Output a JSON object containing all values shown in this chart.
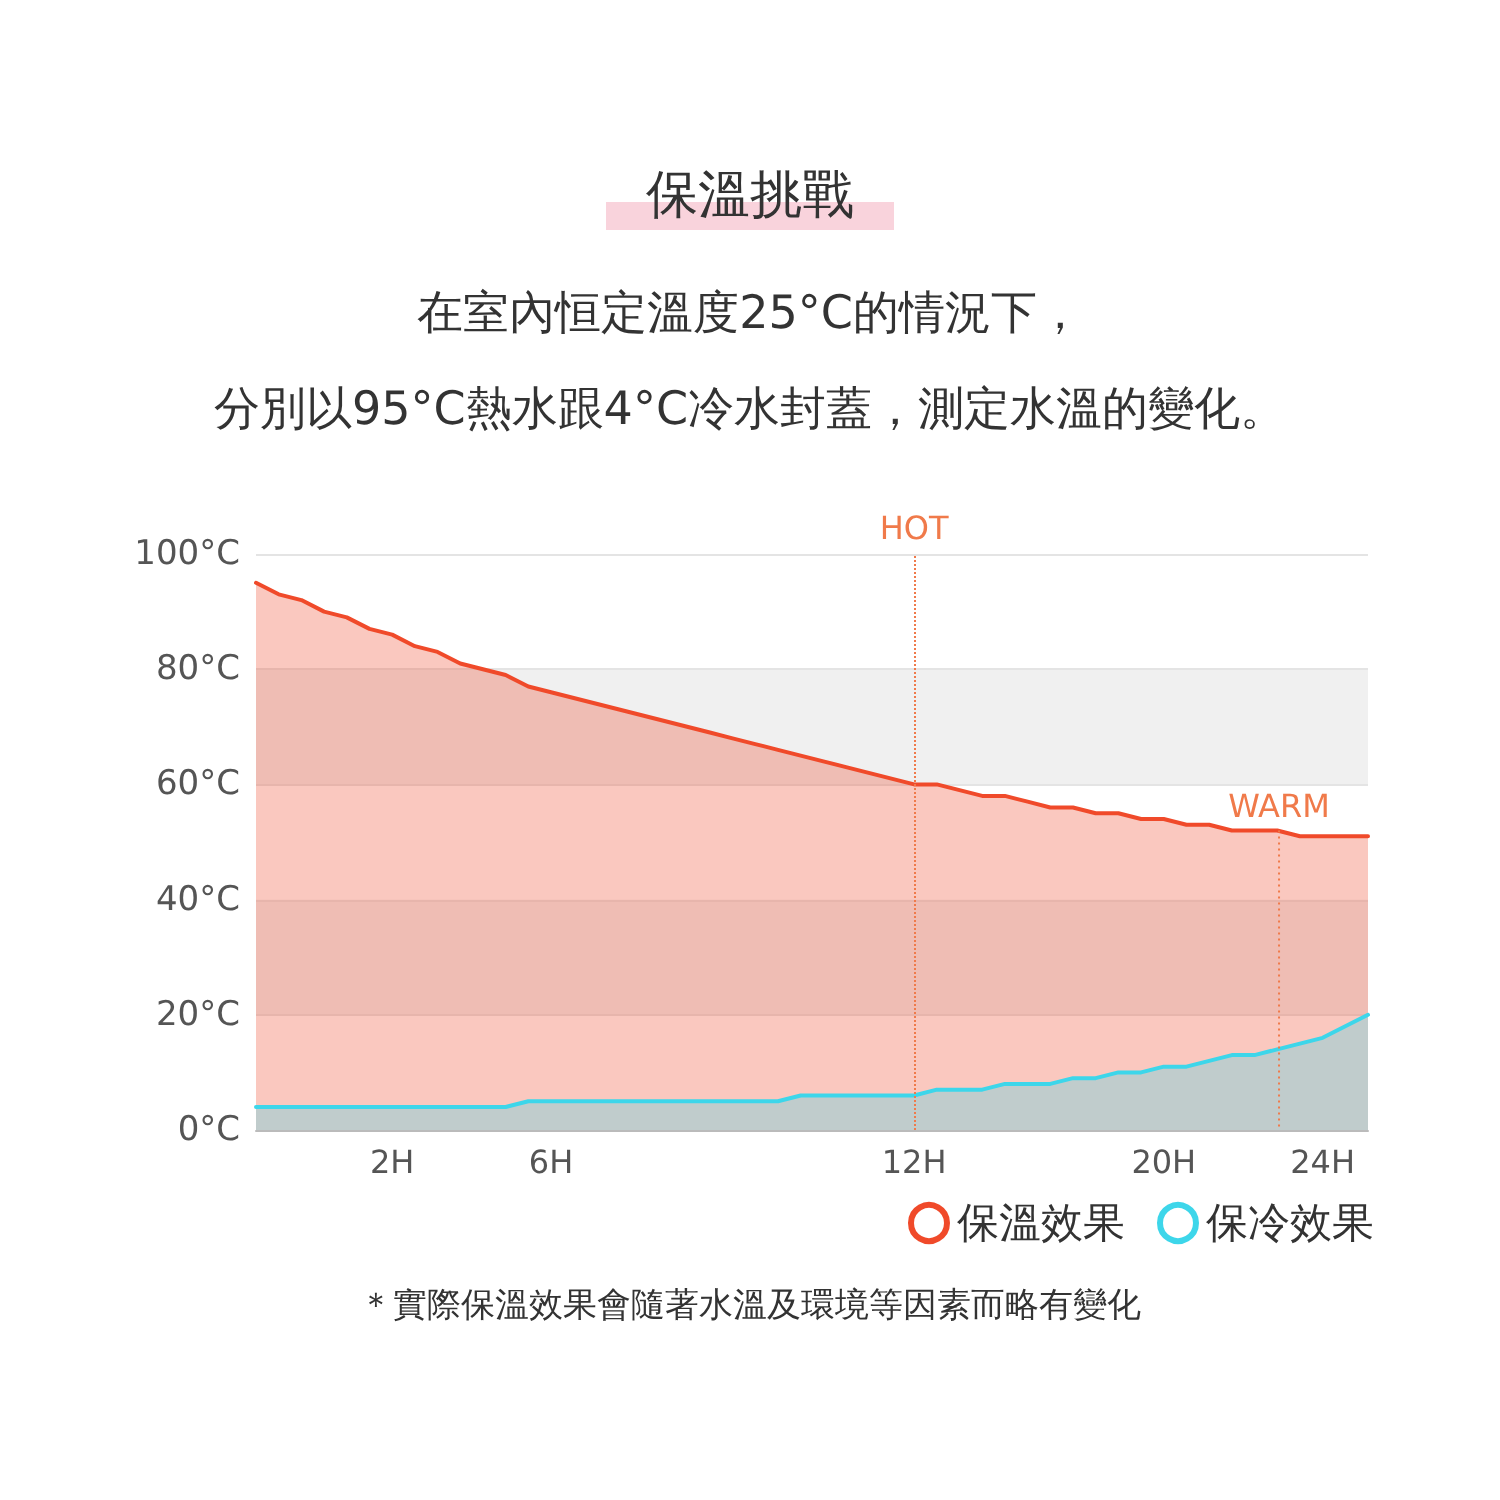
{
  "chart_data": {
    "type": "area",
    "title": "保溫挑戰",
    "subtitle": "在室內恒定溫度25°C的情況下，",
    "categories": [
      null,
      null,
      null,
      null,
      null,
      null,
      "2H",
      null,
      null,
      null,
      null,
      null,
      null,
      "6H",
      null,
      null,
      null,
      null,
      null,
      null,
      null,
      null,
      null,
      null,
      null,
      null,
      null,
      null,
      null,
      "12H",
      null,
      null,
      null,
      null,
      null,
      null,
      null,
      null,
      null,
      null,
      "20H",
      null,
      null,
      null,
      null,
      null,
      null,
      "24H",
      null,
      null
    ],
    "series": [
      {
        "name": "保溫效果",
        "color": "#f04a2a",
        "values": [
          95,
          93,
          92,
          90,
          89,
          87,
          86,
          84,
          83,
          81,
          80,
          79,
          77,
          76,
          75,
          74,
          73,
          72,
          71,
          70,
          69,
          68,
          67,
          66,
          65,
          64,
          63,
          62,
          61,
          60,
          60,
          59,
          58,
          58,
          57,
          56,
          56,
          55,
          55,
          54,
          54,
          53,
          53,
          52,
          52,
          52,
          51,
          51,
          51,
          51
        ]
      },
      {
        "name": "保冷效果",
        "color": "#3dd6ea",
        "values": [
          4,
          4,
          4,
          4,
          4,
          4,
          4,
          4,
          4,
          4,
          4,
          4,
          5,
          5,
          5,
          5,
          5,
          5,
          5,
          5,
          5,
          5,
          5,
          5,
          6,
          6,
          6,
          6,
          6,
          6,
          7,
          7,
          7,
          8,
          8,
          8,
          9,
          9,
          10,
          10,
          11,
          11,
          12,
          13,
          13,
          14,
          15,
          16,
          18,
          20
        ]
      }
    ],
    "ylim": [
      0,
      100
    ],
    "yticks": [
      {
        "value": 0,
        "label": "0°C"
      },
      {
        "value": 20,
        "label": "20°C"
      },
      {
        "value": 40,
        "label": "40°C"
      },
      {
        "value": 60,
        "label": "60°C"
      },
      {
        "value": 80,
        "label": "80°C"
      },
      {
        "value": 100,
        "label": "100°C"
      }
    ],
    "grid": "y",
    "legend": "bottom right",
    "marker": "none",
    "line_style": "solid",
    "ref_lines": [
      {
        "axis": "x",
        "value": "12H",
        "label": "HOT",
        "color": "#f07a4a",
        "line_style": "dotted"
      }
    ],
    "annotations": [
      "分別以95°C熱水跟4°C冷水封蓋，測定水溫的變化。",
      {
        "text": "WARM",
        "y": 52
      },
      "＊實際保溫效果會隨著水溫及環境等因素而略有變化"
    ]
  }
}
